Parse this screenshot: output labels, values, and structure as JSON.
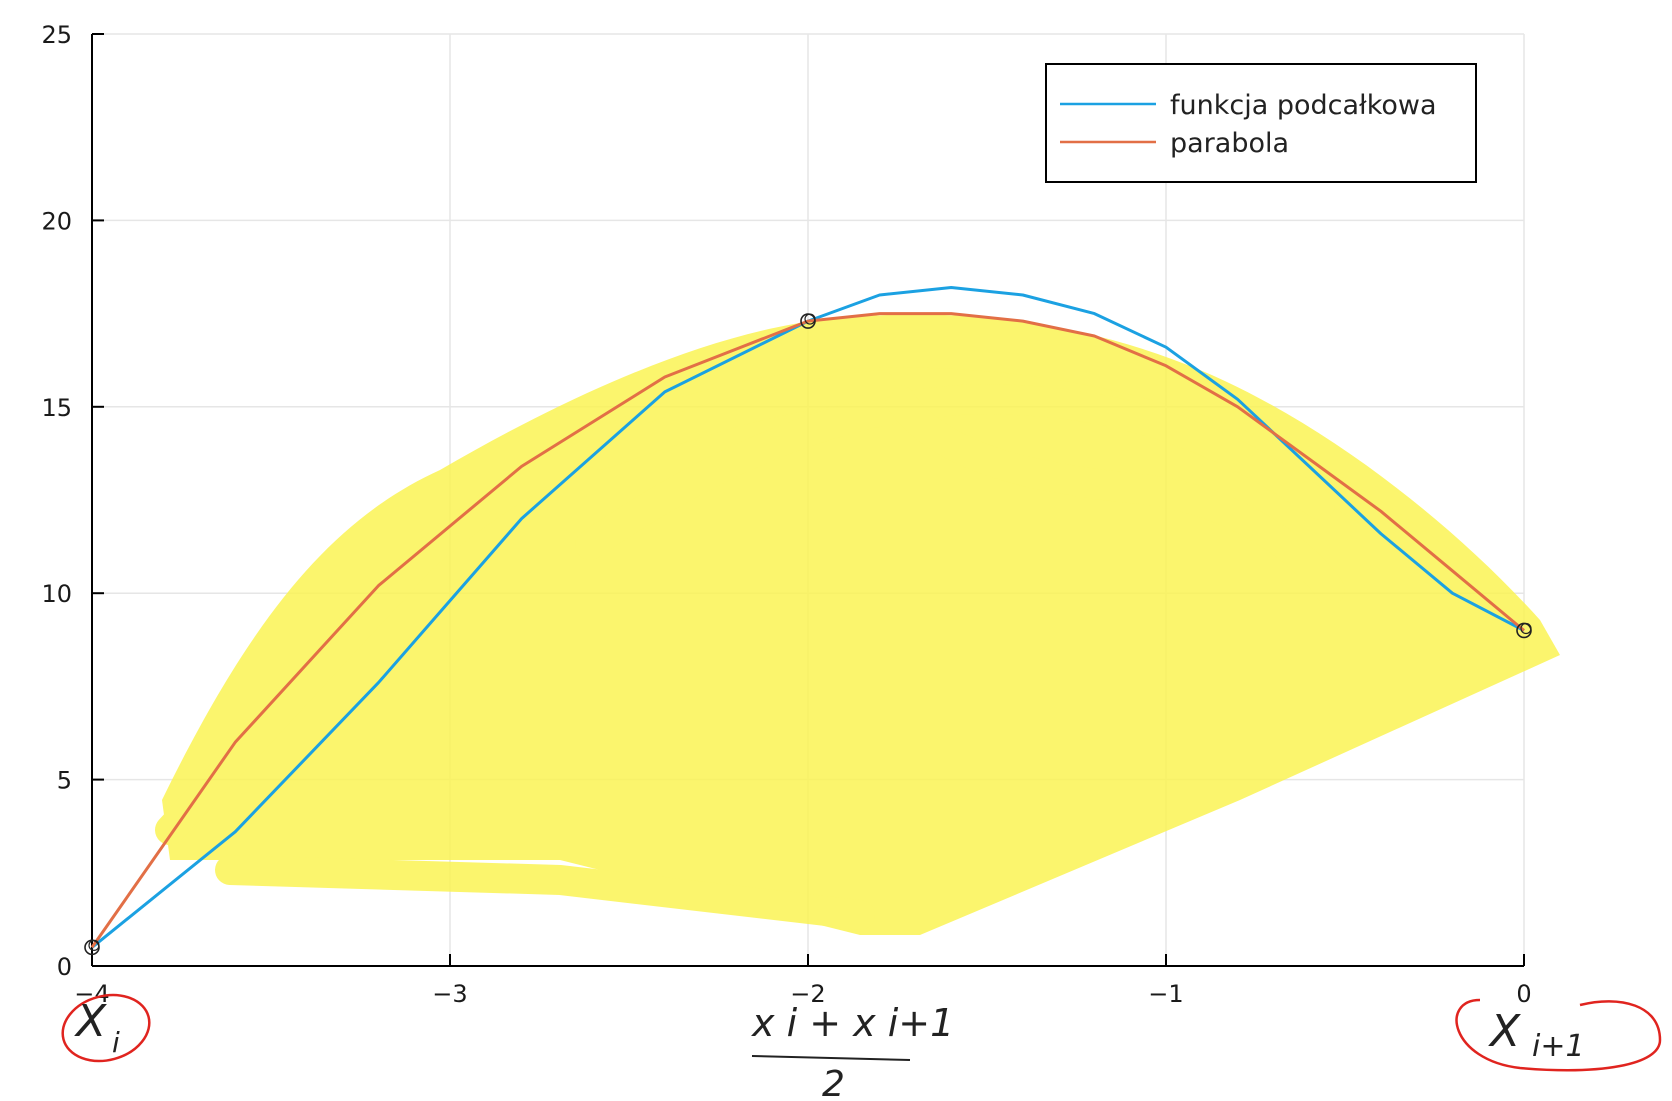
{
  "chart_data": {
    "type": "line",
    "title": "",
    "xlabel": "",
    "ylabel": "",
    "xlim": [
      -4,
      0
    ],
    "ylim": [
      0,
      25
    ],
    "x_ticks": [
      -4,
      -3,
      -2,
      -1,
      0
    ],
    "x_tick_labels": [
      "−4",
      "−3",
      "−2",
      "−1",
      "0"
    ],
    "y_ticks": [
      0,
      5,
      10,
      15,
      20,
      25
    ],
    "y_tick_labels": [
      "0",
      "5",
      "10",
      "15",
      "20",
      "25"
    ],
    "grid": true,
    "legend_position": "top-right",
    "series": [
      {
        "name": "funkcja podcałkowa",
        "color": "#1ba1e2",
        "x": [
          -4.0,
          -3.6,
          -3.2,
          -2.8,
          -2.4,
          -2.0,
          -1.8,
          -1.6,
          -1.4,
          -1.2,
          -1.0,
          -0.8,
          -0.6,
          -0.4,
          -0.2,
          0.0
        ],
        "y": [
          0.5,
          3.6,
          7.6,
          12.0,
          15.4,
          17.3,
          18.0,
          18.2,
          18.0,
          17.5,
          16.6,
          15.2,
          13.4,
          11.6,
          10.0,
          9.0
        ]
      },
      {
        "name": "parabola",
        "color": "#e26f46",
        "x": [
          -4.0,
          -3.6,
          -3.2,
          -2.8,
          -2.4,
          -2.0,
          -1.8,
          -1.6,
          -1.4,
          -1.2,
          -1.0,
          -0.8,
          -0.6,
          -0.4,
          -0.2,
          0.0
        ],
        "y": [
          0.5,
          6.0,
          10.2,
          13.4,
          15.8,
          17.3,
          17.5,
          17.5,
          17.3,
          16.9,
          16.1,
          15.0,
          13.6,
          12.2,
          10.6,
          9.0
        ]
      }
    ],
    "marked_points": [
      {
        "x": -4.0,
        "y": 0.5
      },
      {
        "x": -2.0,
        "y": 17.3
      },
      {
        "x": 0.0,
        "y": 9.0
      }
    ]
  },
  "annotations": {
    "left": {
      "main": "X",
      "sub": "i"
    },
    "middle": {
      "numerator": "x i + x i+1",
      "denominator": "2"
    },
    "right": {
      "main": "X",
      "sub": "i+1"
    }
  },
  "colors": {
    "highlight": "#fbf454",
    "circle_ink": "#e0241f",
    "grid": "#e6e6e6"
  }
}
